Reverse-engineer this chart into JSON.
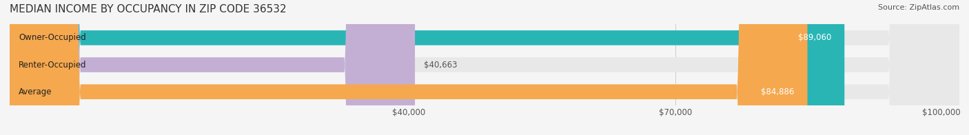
{
  "title": "MEDIAN INCOME BY OCCUPANCY IN ZIP CODE 36532",
  "source": "Source: ZipAtlas.com",
  "categories": [
    "Owner-Occupied",
    "Renter-Occupied",
    "Average"
  ],
  "values": [
    89060,
    40663,
    84886
  ],
  "bar_colors": [
    "#2ab5b5",
    "#c4afd4",
    "#f5a84e"
  ],
  "bar_labels": [
    "$89,060",
    "$40,663",
    "$84,886"
  ],
  "xlim": [
    0,
    100000
  ],
  "xticks": [
    40000,
    70000,
    100000
  ],
  "xtick_labels": [
    "$40,000",
    "$70,000",
    "$100,000"
  ],
  "background_color": "#f5f5f5",
  "bar_background_color": "#e8e8e8",
  "title_fontsize": 11,
  "source_fontsize": 8,
  "label_fontsize": 8.5,
  "tick_fontsize": 8.5,
  "bar_height": 0.55,
  "bar_label_color_inside": "#ffffff",
  "bar_label_color_outside": "#555555"
}
